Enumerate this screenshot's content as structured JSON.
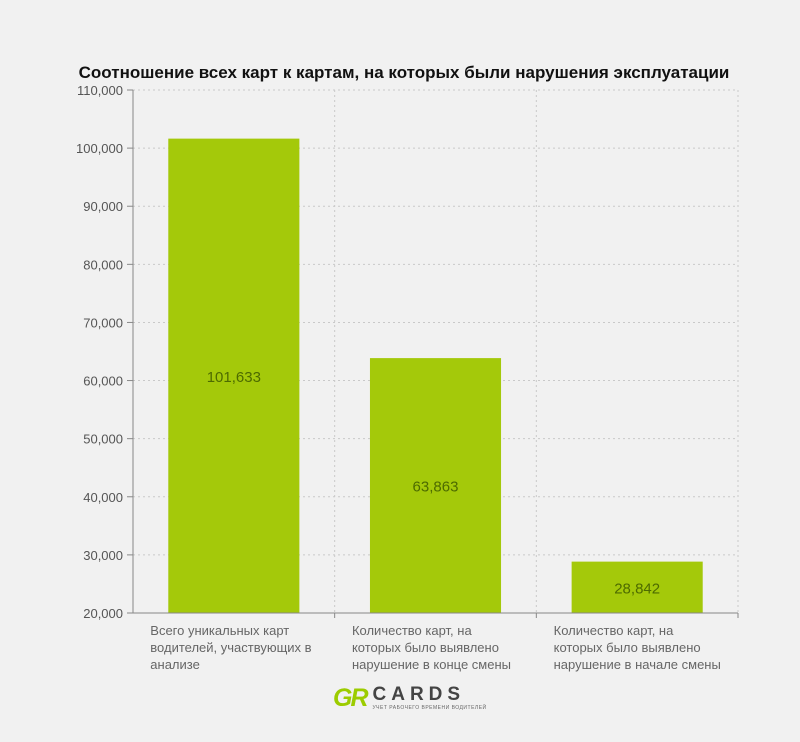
{
  "chart_data": {
    "type": "bar",
    "title": "Соотношение всех карт к картам, на которых были нарушения эксплуатации",
    "categories": [
      [
        "Всего уникальных карт",
        "водителей, участвующих в",
        "анализе"
      ],
      [
        "Количество карт, на",
        "которых было выявлено",
        "нарушение в конце смены"
      ],
      [
        "Количество карт, на",
        "которых было выявлено",
        "нарушение в начале смены"
      ]
    ],
    "values": [
      101633,
      63863,
      28842
    ],
    "value_labels": [
      "101,633",
      "63,863",
      "28,842"
    ],
    "y_ticks": [
      "20,000",
      "30,000",
      "40,000",
      "50,000",
      "60,000",
      "70,000",
      "80,000",
      "90,000",
      "100,000",
      "110,000"
    ],
    "ylim": [
      20000,
      110000
    ],
    "grid": true,
    "bar_color": "#a4c90a",
    "xlabel": "",
    "ylabel": ""
  },
  "logo": {
    "mark": "GR",
    "word": "CARDS",
    "subtitle": "УЧЕТ РАБОЧЕГО ВРЕМЕНИ ВОДИТЕЛЕЙ"
  }
}
